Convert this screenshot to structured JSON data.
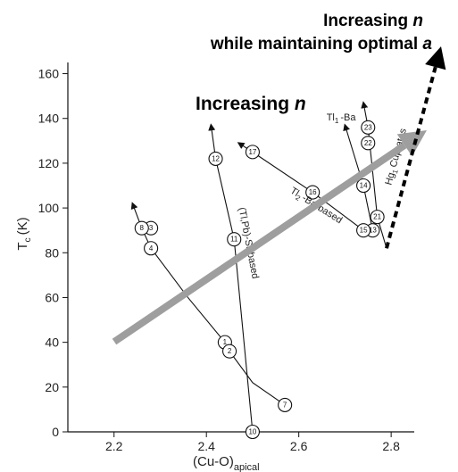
{
  "chart_data": {
    "type": "scatter",
    "xlabel": "(Cu-O)",
    "xlabel_sub": "apical",
    "ylabel": "T",
    "ylabel_sub": "c",
    "ylabel_unit": "(K)",
    "xlim": [
      2.1,
      2.85
    ],
    "ylim": [
      0,
      165
    ],
    "xticks": [
      2.2,
      2.4,
      2.6,
      2.8
    ],
    "yticks": [
      0,
      20,
      40,
      60,
      80,
      100,
      120,
      140,
      160
    ],
    "xtick_labels": [
      "2.2",
      "2.4",
      "2.6",
      "2.8"
    ],
    "ytick_labels": [
      "0",
      "20",
      "40",
      "60",
      "80",
      "100",
      "120",
      "140",
      "160"
    ],
    "points": [
      {
        "label": "1",
        "x": 2.44,
        "y": 40
      },
      {
        "label": "2",
        "x": 2.45,
        "y": 36
      },
      {
        "label": "3",
        "x": 2.28,
        "y": 91
      },
      {
        "label": "4",
        "x": 2.28,
        "y": 82
      },
      {
        "label": "7",
        "x": 2.57,
        "y": 12
      },
      {
        "label": "8",
        "x": 2.26,
        "y": 91
      },
      {
        "label": "10",
        "x": 2.5,
        "y": 0
      },
      {
        "label": "11",
        "x": 2.46,
        "y": 86
      },
      {
        "label": "12",
        "x": 2.42,
        "y": 122
      },
      {
        "label": "13",
        "x": 2.76,
        "y": 90
      },
      {
        "label": "14",
        "x": 2.74,
        "y": 110
      },
      {
        "label": "15",
        "x": 2.74,
        "y": 90
      },
      {
        "label": "16",
        "x": 2.63,
        "y": 107
      },
      {
        "label": "17",
        "x": 2.5,
        "y": 125
      },
      {
        "label": "21",
        "x": 2.77,
        "y": 96
      },
      {
        "label": "22",
        "x": 2.75,
        "y": 129
      },
      {
        "label": "23",
        "x": 2.75,
        "y": 136
      }
    ],
    "curves": [
      {
        "points": [
          [
            2.24,
            102
          ],
          [
            2.26,
            91
          ],
          [
            2.28,
            82
          ],
          [
            2.36,
            60
          ],
          [
            2.44,
            40
          ],
          [
            2.45,
            36
          ],
          [
            2.5,
            22
          ],
          [
            2.57,
            12
          ]
        ],
        "arrow_end": "start"
      },
      {
        "points": [
          [
            2.5,
            0
          ],
          [
            2.46,
            86
          ],
          [
            2.42,
            122
          ],
          [
            2.41,
            137
          ]
        ],
        "arrow_end": "end"
      },
      {
        "points": [
          [
            2.74,
            90
          ],
          [
            2.63,
            107
          ],
          [
            2.5,
            125
          ],
          [
            2.47,
            129
          ]
        ],
        "arrow_end": "end"
      },
      {
        "points": [
          [
            2.76,
            90
          ],
          [
            2.74,
            110
          ],
          [
            2.7,
            137
          ]
        ],
        "arrow_end": "end"
      },
      {
        "points": [
          [
            2.79,
            82
          ],
          [
            2.77,
            96
          ],
          [
            2.75,
            136
          ],
          [
            2.74,
            147
          ]
        ],
        "arrow_end": "end"
      }
    ],
    "handwritten_labels": [
      {
        "text": "(Tl,Pb)-Sr-based",
        "x": 2.47,
        "y": 100,
        "rotate": 79
      },
      {
        "text": "Tl",
        "sub": "2",
        "text2": "-Ba-based",
        "x": 2.58,
        "y": 107,
        "rotate": 32
      },
      {
        "text": "Tl",
        "sub": "1",
        "text2": "-Ba",
        "x": 2.66,
        "y": 139,
        "rotate": 0
      },
      {
        "text": "Hg",
        "sub": "1",
        "text2": "Cuprates",
        "x": 2.8,
        "y": 110,
        "rotate": -75
      }
    ],
    "annotations": {
      "gray_arrow_label": "Increasing ",
      "gray_arrow_label_n": "n",
      "top_line1": "Increasing ",
      "top_line1_n": "n",
      "top_line2": "while maintaining optimal ",
      "top_line2_a": "a"
    },
    "colors": {
      "gray_arrow": "#9e9e9e",
      "ink": "#111111"
    }
  }
}
